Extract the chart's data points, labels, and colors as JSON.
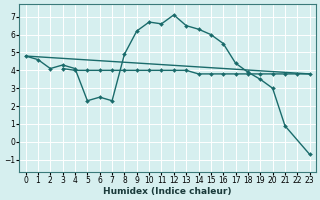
{
  "xlabel": "Humidex (Indice chaleur)",
  "ylabel": "",
  "bg_color": "#d6efef",
  "grid_color": "#ffffff",
  "line_color": "#1a6b6b",
  "xlim": [
    -0.5,
    23.5
  ],
  "ylim": [
    -1.7,
    7.7
  ],
  "yticks": [
    -1,
    0,
    1,
    2,
    3,
    4,
    5,
    6,
    7
  ],
  "xticks": [
    0,
    1,
    2,
    3,
    4,
    5,
    6,
    7,
    8,
    9,
    10,
    11,
    12,
    13,
    14,
    15,
    16,
    17,
    18,
    19,
    20,
    21,
    22,
    23
  ],
  "line1_x": [
    0,
    1,
    2,
    3,
    4,
    5,
    6,
    7,
    8,
    9,
    10,
    11,
    12,
    13,
    14,
    15,
    16,
    17,
    18,
    19,
    20,
    21,
    23
  ],
  "line1_y": [
    4.8,
    4.6,
    4.1,
    4.3,
    4.1,
    2.3,
    2.5,
    2.3,
    4.9,
    6.2,
    6.7,
    6.6,
    7.1,
    6.5,
    6.3,
    6.0,
    5.5,
    4.4,
    3.9,
    3.5,
    3.0,
    0.9,
    -0.7
  ],
  "line2_x": [
    3,
    4,
    5,
    6,
    7,
    8,
    9,
    10,
    11,
    12,
    13,
    14,
    15,
    16,
    17,
    18,
    19,
    20,
    21,
    22,
    23
  ],
  "line2_y": [
    4.1,
    4.0,
    4.0,
    4.0,
    4.0,
    4.0,
    4.0,
    4.0,
    4.0,
    4.0,
    4.0,
    3.8,
    3.8,
    3.8,
    3.8,
    3.8,
    3.8,
    3.8,
    3.8,
    3.8,
    3.8
  ],
  "line3_x": [
    0,
    23
  ],
  "line3_y": [
    4.8,
    3.8
  ],
  "marker_size": 2.0,
  "line_width": 1.0,
  "tick_fontsize": 5.5,
  "xlabel_fontsize": 6.5
}
